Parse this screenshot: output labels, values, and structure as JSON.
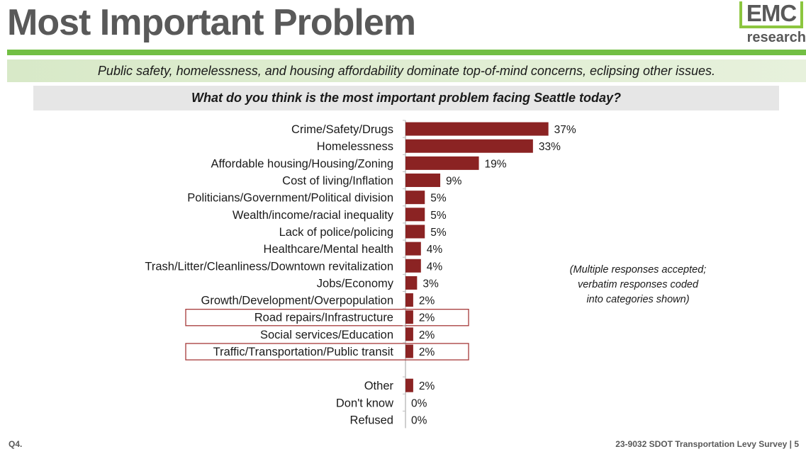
{
  "header": {
    "title": "Most Important Problem",
    "logo_top": "EMC",
    "logo_bottom": "research"
  },
  "subtitle": "Public safety, homelessness, and housing affordability dominate top-of-mind concerns, eclipsing other issues.",
  "question": "What do you think is the most important problem facing Seattle today?",
  "note": [
    "(Multiple responses accepted;",
    "verbatim responses coded",
    "into categories shown)"
  ],
  "footer": {
    "left": "Q4.",
    "right": "23-9032 SDOT Transportation Levy Survey | 5"
  },
  "colors": {
    "bar": "#8b2323",
    "accent_green": "#72bf44",
    "highlight_box": "#a63a3a"
  },
  "chart_data": {
    "type": "bar",
    "orientation": "horizontal",
    "title": "What do you think is the most important problem facing Seattle today?",
    "value_format": "percent",
    "categories": [
      "Crime/Safety/Drugs",
      "Homelessness",
      "Affordable housing/Housing/Zoning",
      "Cost of living/Inflation",
      "Politicians/Government/Political division",
      "Wealth/income/racial inequality",
      "Lack of police/policing",
      "Healthcare/Mental health",
      "Trash/Litter/Cleanliness/Downtown revitalization",
      "Jobs/Economy",
      "Growth/Development/Overpopulation",
      "Road repairs/Infrastructure",
      "Social services/Education",
      "Traffic/Transportation/Public transit",
      "Other",
      "Don't know",
      "Refused"
    ],
    "values": [
      37,
      33,
      19,
      9,
      5,
      5,
      5,
      4,
      4,
      3,
      2,
      2,
      2,
      2,
      2,
      0,
      0
    ],
    "labels": [
      "37%",
      "33%",
      "19%",
      "9%",
      "5%",
      "5%",
      "5%",
      "4%",
      "4%",
      "3%",
      "2%",
      "2%",
      "2%",
      "2%",
      "2%",
      "0%",
      "0%"
    ],
    "gap_before_index": 14,
    "highlighted": [
      "Road repairs/Infrastructure",
      "Traffic/Transportation/Public transit"
    ]
  }
}
